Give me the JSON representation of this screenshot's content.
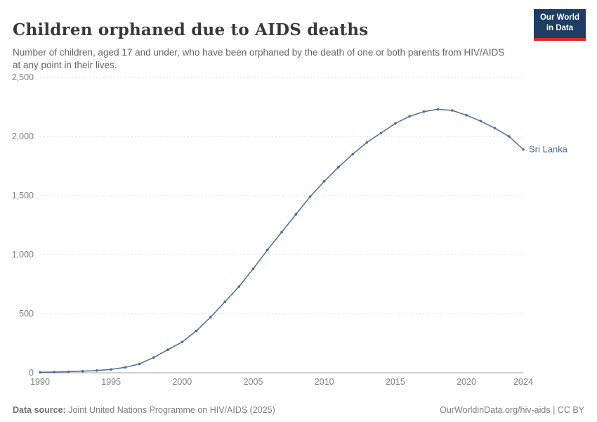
{
  "header": {
    "title": "Children orphaned due to AIDS deaths",
    "subtitle": "Number of children, aged 17 and under, who have been orphaned by the death of one or both parents from HIV/AIDS at any point in their lives.",
    "logo": {
      "line1": "Our World",
      "line2": "in Data",
      "bg_color": "#1d3d63",
      "accent_color": "#d42b21"
    }
  },
  "chart_data": {
    "type": "line",
    "title": "Children orphaned due to AIDS deaths",
    "xlabel": "",
    "ylabel": "",
    "ylim": [
      0,
      2500
    ],
    "grid": "horizontal-dashed",
    "legend": "end-of-line-label",
    "x": [
      1990,
      1991,
      1992,
      1993,
      1994,
      1995,
      1996,
      1997,
      1998,
      1999,
      2000,
      2001,
      2002,
      2003,
      2004,
      2005,
      2006,
      2007,
      2008,
      2009,
      2010,
      2011,
      2012,
      2013,
      2014,
      2015,
      2016,
      2017,
      2018,
      2019,
      2020,
      2021,
      2022,
      2023,
      2024
    ],
    "series": [
      {
        "name": "Sri Lanka",
        "color": "#4c6a9c",
        "values": [
          4,
          6,
          9,
          13,
          19,
          28,
          46,
          75,
          130,
          195,
          260,
          355,
          470,
          600,
          730,
          880,
          1040,
          1190,
          1340,
          1490,
          1620,
          1740,
          1850,
          1950,
          2030,
          2110,
          2170,
          2210,
          2230,
          2220,
          2180,
          2130,
          2070,
          2000,
          1890
        ]
      }
    ],
    "yticks": [
      {
        "value": 0,
        "label": "0"
      },
      {
        "value": 500,
        "label": "500"
      },
      {
        "value": 1000,
        "label": "1,000"
      },
      {
        "value": 1500,
        "label": "1,500"
      },
      {
        "value": 2000,
        "label": "2,000"
      },
      {
        "value": 2500,
        "label": "2,500"
      }
    ],
    "xticks": [
      {
        "value": 1990,
        "label": "1990"
      },
      {
        "value": 1995,
        "label": "1995"
      },
      {
        "value": 2000,
        "label": "2000"
      },
      {
        "value": 2005,
        "label": "2005"
      },
      {
        "value": 2010,
        "label": "2010"
      },
      {
        "value": 2015,
        "label": "2015"
      },
      {
        "value": 2020,
        "label": "2020"
      },
      {
        "value": 2024,
        "label": "2024"
      }
    ],
    "colors": {
      "axis": "#a0a0a0",
      "gridline": "#dedede",
      "tick_label": "#7f7f7f"
    }
  },
  "footer": {
    "source_label": "Data source:",
    "source_text": "Joint United Nations Programme on HIV/AIDS (2025)",
    "link_text": "OurWorldinData.org/hiv-aids | CC BY"
  }
}
